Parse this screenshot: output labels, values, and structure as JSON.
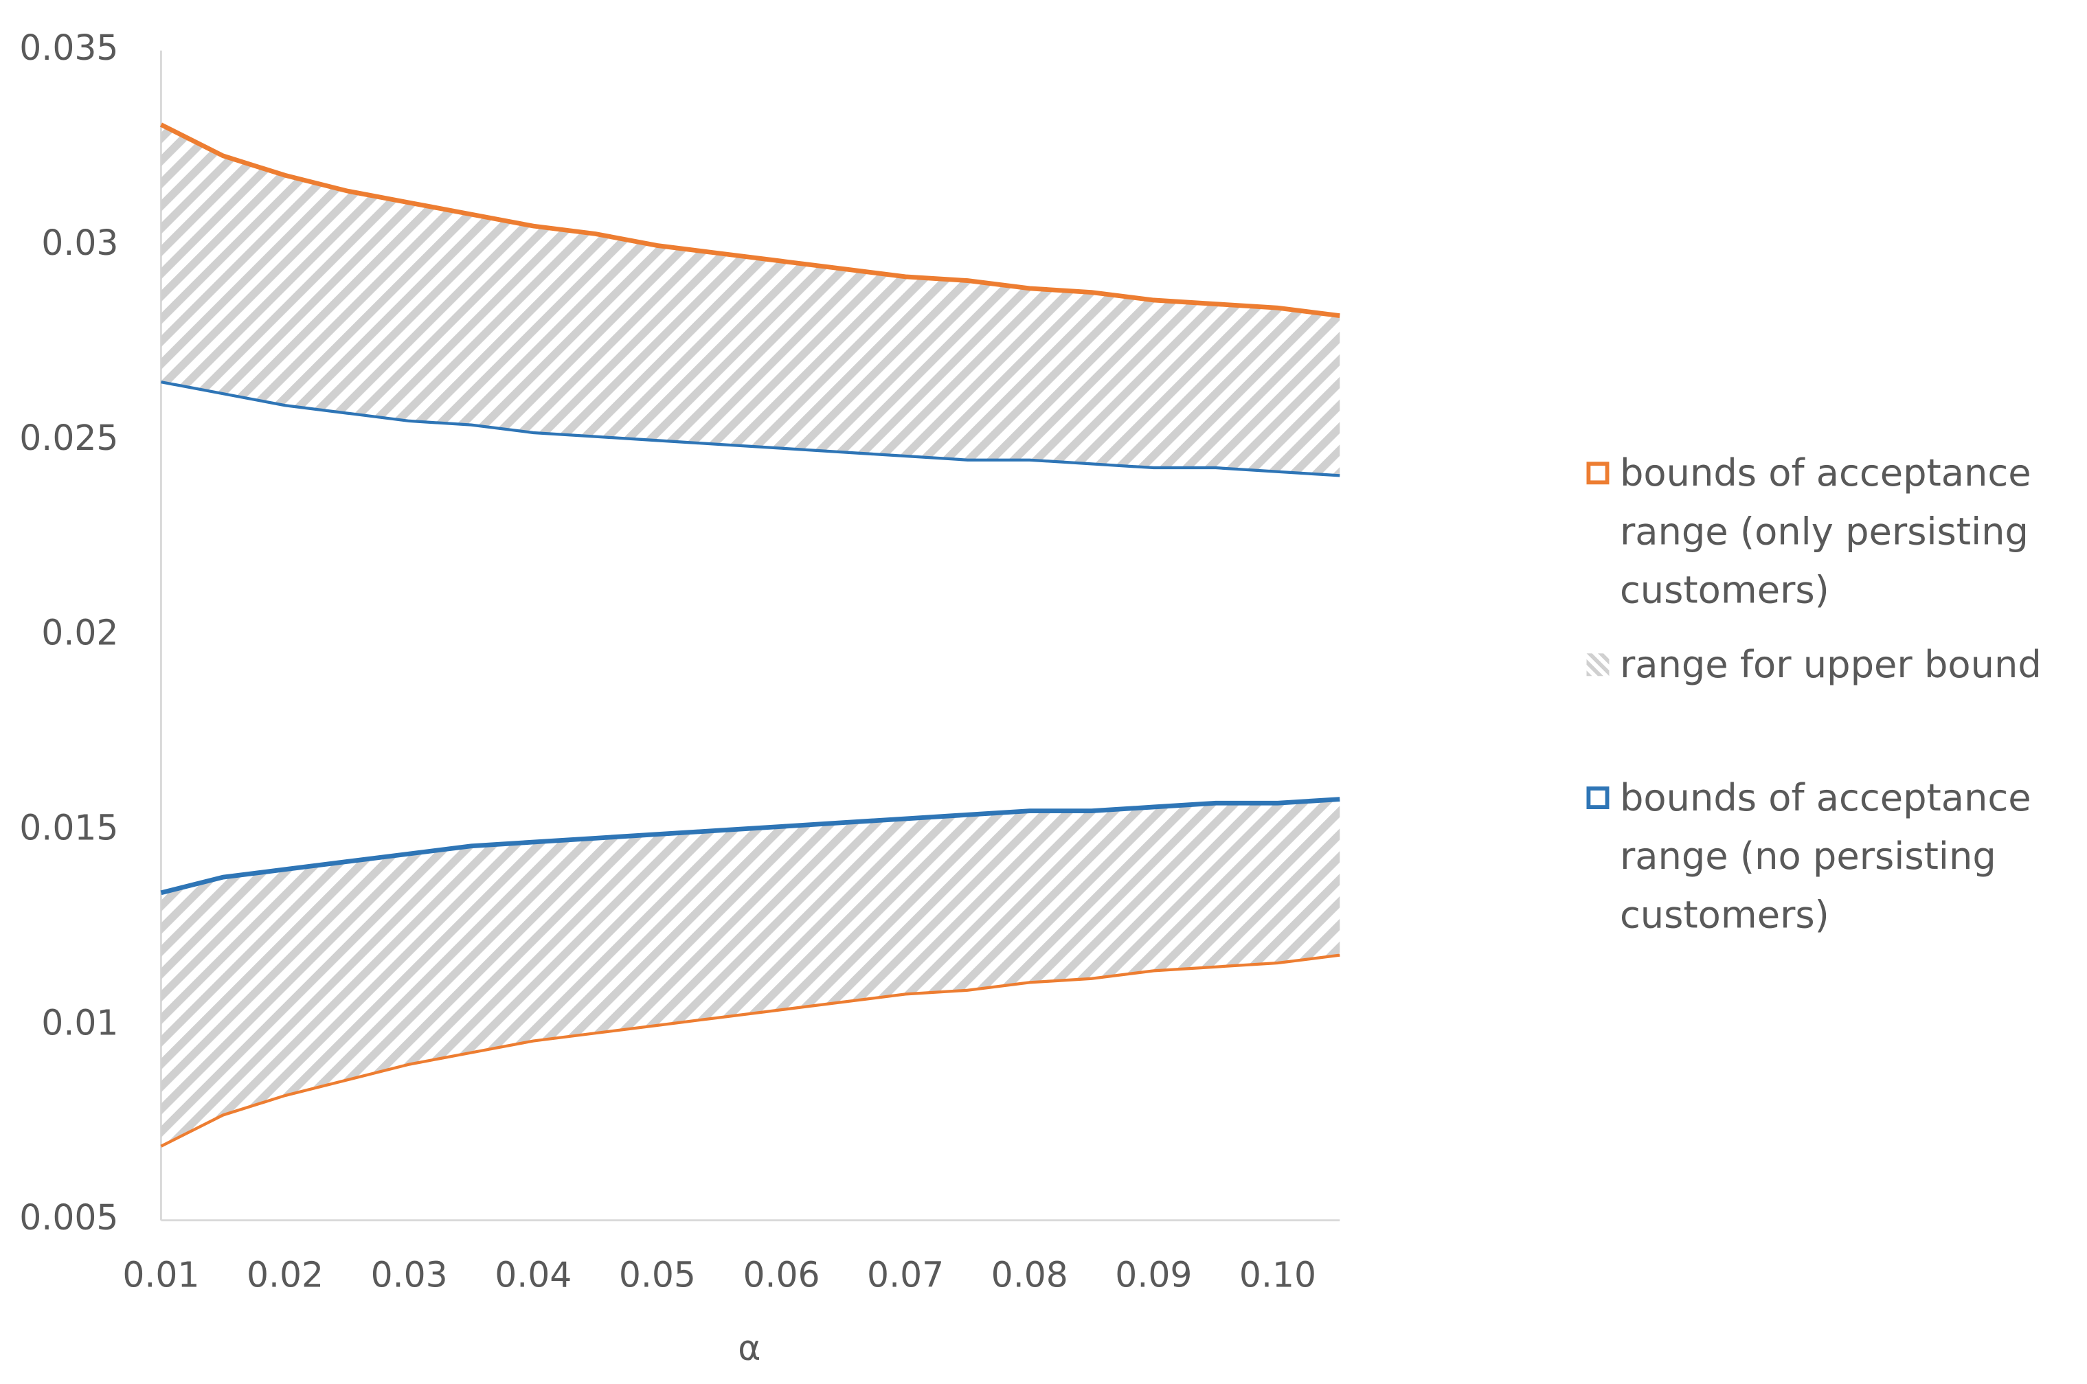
{
  "chart_data": {
    "type": "band-lines",
    "x_label": "α",
    "x": [
      0.01,
      0.015,
      0.02,
      0.025,
      0.03,
      0.035,
      0.04,
      0.045,
      0.05,
      0.055,
      0.06,
      0.065,
      0.07,
      0.075,
      0.08,
      0.085,
      0.09,
      0.095,
      0.1,
      0.105
    ],
    "series": [
      {
        "name": "bounds of acceptance range (only persisting customers)",
        "color": "#ed7d31",
        "upper": [
          0.0331,
          0.0323,
          0.0318,
          0.0314,
          0.0311,
          0.0308,
          0.0305,
          0.0303,
          0.03,
          0.0298,
          0.0296,
          0.0294,
          0.0292,
          0.0291,
          0.0289,
          0.0288,
          0.0286,
          0.0285,
          0.0284,
          0.0282
        ],
        "lower": [
          0.0069,
          0.0077,
          0.0082,
          0.0086,
          0.009,
          0.0093,
          0.0096,
          0.0098,
          0.01,
          0.0102,
          0.0104,
          0.0106,
          0.0108,
          0.0109,
          0.0111,
          0.0112,
          0.0114,
          0.0115,
          0.0116,
          0.0118
        ]
      },
      {
        "name": "bounds of acceptance range (no persisting customers)",
        "color": "#2e75b6",
        "upper": [
          0.0265,
          0.0262,
          0.0259,
          0.0257,
          0.0255,
          0.0254,
          0.0252,
          0.0251,
          0.025,
          0.0249,
          0.0248,
          0.0247,
          0.0246,
          0.0245,
          0.0245,
          0.0244,
          0.0243,
          0.0243,
          0.0242,
          0.0241
        ],
        "lower": [
          0.0134,
          0.0138,
          0.014,
          0.0142,
          0.0144,
          0.0146,
          0.0147,
          0.0148,
          0.0149,
          0.015,
          0.0151,
          0.0152,
          0.0153,
          0.0154,
          0.0155,
          0.0155,
          0.0156,
          0.0157,
          0.0157,
          0.0158
        ]
      }
    ],
    "band": {
      "name": "range for upper bound",
      "color": "#d0d0d0"
    },
    "xlim": [
      0.01,
      0.105
    ],
    "xticks": [
      0.01,
      0.02,
      0.03,
      0.04,
      0.05,
      0.06,
      0.07,
      0.08,
      0.09,
      {
        "value": 0.1,
        "label": "0.10"
      }
    ],
    "ylim": [
      0.005,
      0.035
    ],
    "yticks": [
      0.005,
      0.01,
      0.015,
      0.02,
      0.025,
      0.03,
      0.035
    ],
    "grid": false
  }
}
